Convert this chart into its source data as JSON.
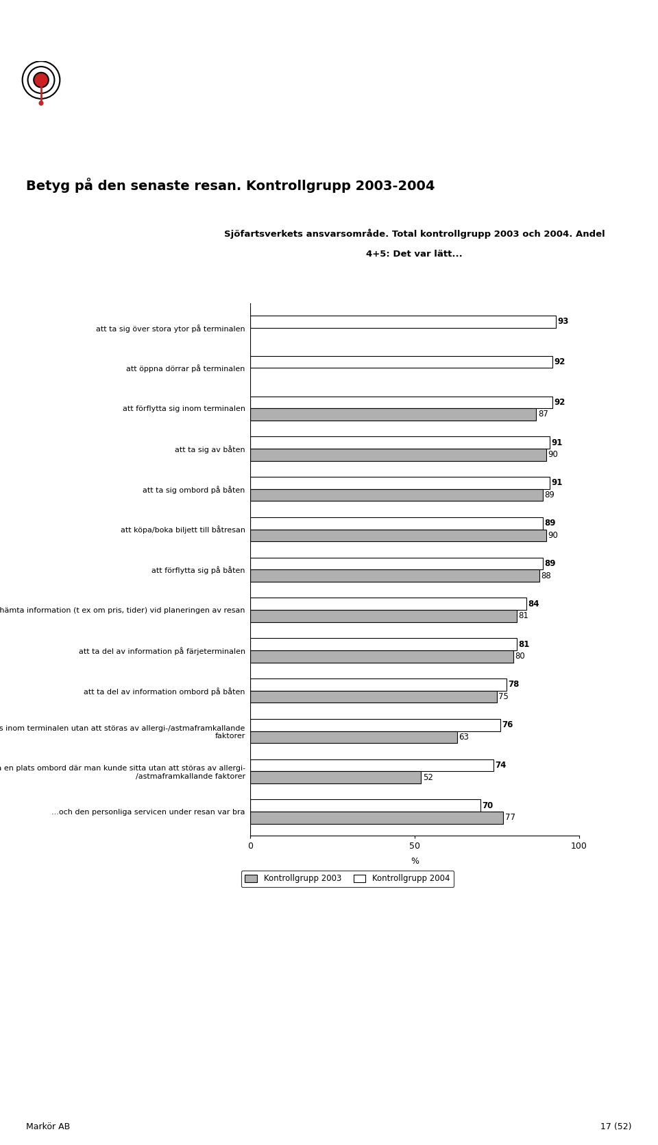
{
  "title": "Betyg på den senaste resan. Kontrollgrupp 2003-2004",
  "subtitle_line1": "Sjöfartsverkets ansvarsområde. Total kontrollgrupp 2003 och 2004. Andel",
  "subtitle_line2": "4+5: Det var lätt...",
  "categories": [
    "att ta sig över stora ytor på terminalen",
    "att öppna dörrar på terminalen",
    "att förflytta sig inom terminalen",
    "att ta sig av båten",
    "att ta sig ombord på båten",
    "att köpa/boka biljett till båtresan",
    "att förflytta sig på båten",
    "att inhämta information (t ex om pris, tider) vid planeringen av resan",
    "att ta del av information på färjeterminalen",
    "att ta del av information ombord på båten",
    "att vistas inom terminalen utan att störas av allergi-/astmaframkallande\nfaktorer",
    "att finna en plats ombord där man kunde sitta utan att störas av allergi-\n/astmaframkallande faktorer",
    "...och den personliga servicen under resan var bra"
  ],
  "values_2004": [
    93,
    92,
    92,
    91,
    91,
    89,
    89,
    84,
    81,
    78,
    76,
    74,
    70
  ],
  "values_2003": [
    null,
    null,
    87,
    90,
    89,
    90,
    88,
    81,
    80,
    75,
    63,
    52,
    77
  ],
  "color_2004": "#ffffff",
  "color_2003": "#b0b0b0",
  "bar_edge": "#000000",
  "xlabel": "%",
  "xlim": [
    0,
    100
  ],
  "xticks": [
    0,
    50,
    100
  ],
  "legend_2003": "Kontrollgrupp 2003",
  "legend_2004": "Kontrollgrupp 2004",
  "footer": "Markör AB",
  "page": "17 (52)"
}
